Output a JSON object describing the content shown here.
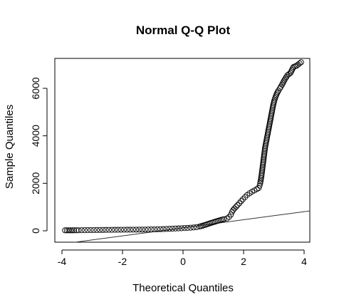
{
  "chart_data": {
    "type": "scatter",
    "title": "Normal Q-Q Plot",
    "xlabel": "Theoretical Quantiles",
    "ylabel": "Sample Quantiles",
    "xlim": [
      -4,
      4
    ],
    "ylim": [
      0,
      7000
    ],
    "x_ticks": [
      -4,
      -2,
      0,
      2,
      4
    ],
    "y_ticks": [
      0,
      2000,
      4000,
      6000
    ],
    "grid": false,
    "marker": "open-circle",
    "qq_line": {
      "intercept": 125,
      "slope": 170
    },
    "series": [
      {
        "points": [
          [
            -3.9,
            20
          ],
          [
            -3.6,
            20
          ],
          [
            -3.45,
            22
          ],
          [
            -3.35,
            25
          ],
          [
            -3.25,
            25
          ],
          [
            -3.15,
            28
          ],
          [
            -3.05,
            30
          ],
          [
            -2.95,
            30
          ],
          [
            -2.85,
            32
          ],
          [
            -2.75,
            35
          ],
          [
            -2.65,
            35
          ],
          [
            -2.55,
            38
          ],
          [
            -2.45,
            40
          ],
          [
            -2.35,
            40
          ],
          [
            -2.25,
            42
          ],
          [
            -2.15,
            42
          ],
          [
            -2.05,
            44
          ],
          [
            -1.95,
            45
          ],
          [
            -1.85,
            46
          ],
          [
            -1.75,
            46
          ],
          [
            -1.65,
            48
          ],
          [
            -1.55,
            48
          ],
          [
            -1.45,
            50
          ],
          [
            -1.35,
            50
          ],
          [
            -1.25,
            52
          ],
          [
            -1.15,
            55
          ],
          [
            -1.05,
            58
          ],
          [
            -0.95,
            60
          ],
          [
            -0.85,
            63
          ],
          [
            -0.75,
            67
          ],
          [
            -0.65,
            72
          ],
          [
            -0.55,
            78
          ],
          [
            -0.45,
            84
          ],
          [
            -0.35,
            90
          ],
          [
            -0.25,
            96
          ],
          [
            -0.15,
            102
          ],
          [
            -0.05,
            108
          ],
          [
            0.05,
            115
          ],
          [
            0.15,
            122
          ],
          [
            0.25,
            130
          ],
          [
            0.35,
            140
          ],
          [
            0.45,
            155
          ],
          [
            0.55,
            180
          ],
          [
            0.65,
            215
          ],
          [
            0.75,
            255
          ],
          [
            0.85,
            300
          ],
          [
            0.95,
            340
          ],
          [
            1.05,
            380
          ],
          [
            1.15,
            420
          ],
          [
            1.25,
            455
          ],
          [
            1.35,
            490
          ],
          [
            1.45,
            520
          ],
          [
            1.52,
            580
          ],
          [
            1.58,
            680
          ],
          [
            1.62,
            800
          ],
          [
            1.66,
            880
          ],
          [
            1.7,
            940
          ],
          [
            1.75,
            1010
          ],
          [
            1.8,
            1080
          ],
          [
            1.86,
            1160
          ],
          [
            1.92,
            1250
          ],
          [
            1.98,
            1330
          ],
          [
            2.05,
            1420
          ],
          [
            2.12,
            1510
          ],
          [
            2.2,
            1580
          ],
          [
            2.28,
            1650
          ],
          [
            2.36,
            1700
          ],
          [
            2.44,
            1760
          ],
          [
            2.5,
            1800
          ],
          [
            2.53,
            1900
          ],
          [
            2.55,
            2000
          ],
          [
            2.57,
            2150
          ],
          [
            2.59,
            2300
          ],
          [
            2.61,
            2500
          ],
          [
            2.63,
            2700
          ],
          [
            2.65,
            2900
          ],
          [
            2.67,
            3100
          ],
          [
            2.69,
            3300
          ],
          [
            2.71,
            3500
          ],
          [
            2.74,
            3700
          ],
          [
            2.77,
            3900
          ],
          [
            2.8,
            4100
          ],
          [
            2.83,
            4300
          ],
          [
            2.86,
            4500
          ],
          [
            2.89,
            4700
          ],
          [
            2.92,
            4900
          ],
          [
            2.95,
            5100
          ],
          [
            2.98,
            5300
          ],
          [
            3.02,
            5500
          ],
          [
            3.06,
            5650
          ],
          [
            3.1,
            5780
          ],
          [
            3.15,
            5900
          ],
          [
            3.2,
            6000
          ],
          [
            3.27,
            6150
          ],
          [
            3.35,
            6350
          ],
          [
            3.45,
            6550
          ],
          [
            3.55,
            6650
          ],
          [
            3.65,
            6900
          ],
          [
            3.75,
            6950
          ],
          [
            3.9,
            7100
          ]
        ]
      }
    ]
  }
}
